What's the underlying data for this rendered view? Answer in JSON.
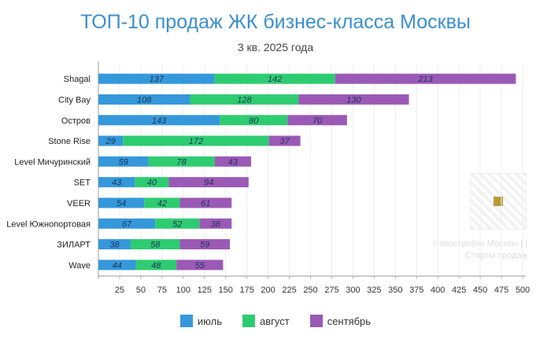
{
  "chart_data": {
    "type": "bar",
    "orientation": "horizontal",
    "stacked": true,
    "title": "ТОП-10 продаж ЖК бизнес-класса Москвы",
    "subtitle": "3 кв. 2025 года",
    "categories": [
      "Shagal",
      "City Bay",
      "Остров",
      "Stone Rise",
      "Level Мичуринский",
      "SET",
      "VEER",
      "Level Южнопортовая",
      "ЗИЛАРТ",
      "Wave"
    ],
    "series": [
      {
        "name": "июль",
        "color": "#3498db",
        "values": [
          137,
          108,
          143,
          29,
          59,
          43,
          54,
          67,
          38,
          44
        ]
      },
      {
        "name": "август",
        "color": "#2ecc71",
        "values": [
          142,
          128,
          80,
          172,
          78,
          40,
          42,
          52,
          58,
          48
        ]
      },
      {
        "name": "сентябрь",
        "color": "#9b59b6",
        "values": [
          213,
          130,
          70,
          37,
          43,
          94,
          61,
          38,
          59,
          55
        ]
      }
    ],
    "xlim": [
      0,
      500
    ],
    "xticks": [
      25,
      50,
      75,
      100,
      125,
      150,
      175,
      200,
      225,
      250,
      275,
      300,
      325,
      350,
      375,
      400,
      425,
      450,
      475,
      500
    ],
    "grid": true,
    "legend": "bottom"
  },
  "watermark": {
    "line1": "Новостройки Москвы | |",
    "line2": "Старты продаж"
  }
}
